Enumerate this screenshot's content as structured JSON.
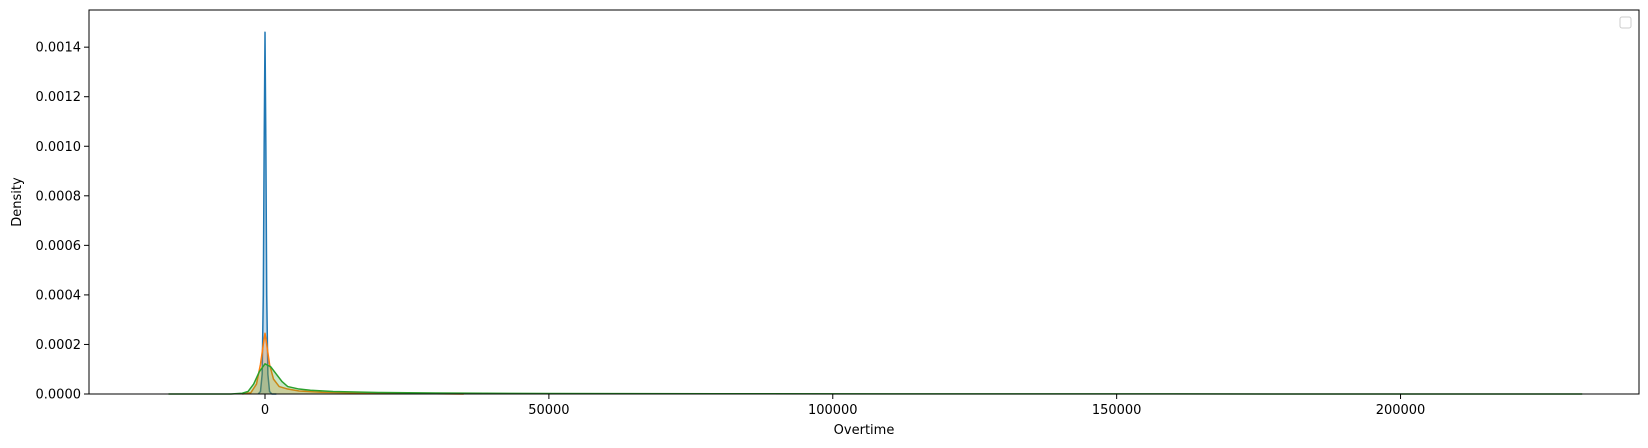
{
  "chart_data": {
    "type": "area",
    "title": "",
    "xlabel": "Overtime",
    "ylabel": "Density",
    "xlim": [
      -31000,
      242000
    ],
    "ylim": [
      0,
      0.00155
    ],
    "x_ticks": [
      0,
      50000,
      100000,
      150000,
      200000
    ],
    "x_tick_labels": [
      "0",
      "50000",
      "100000",
      "150000",
      "200000"
    ],
    "y_ticks": [
      0,
      0.0002,
      0.0004,
      0.0006,
      0.0008,
      0.001,
      0.0012,
      0.0014
    ],
    "y_tick_labels": [
      "0.0000",
      "0.0002",
      "0.0004",
      "0.0006",
      "0.0008",
      "0.0010",
      "0.0012",
      "0.0014"
    ],
    "grid": false,
    "legend": {
      "placement": "top-right",
      "entries": []
    },
    "series": [
      {
        "color": "#1f77b4",
        "x": [
          -1200,
          -800,
          -500,
          -300,
          -150,
          0,
          150,
          300,
          500,
          800,
          1200,
          2000
        ],
        "y": [
          0,
          1e-05,
          8e-05,
          0.0004,
          0.001,
          0.00146,
          0.001,
          0.0004,
          8e-05,
          1e-05,
          0,
          0
        ]
      },
      {
        "color": "#ff7f0e",
        "x": [
          -4000,
          -2500,
          -1500,
          -800,
          -300,
          0,
          300,
          800,
          1500,
          2500,
          4000,
          6000,
          10000,
          20000,
          35000
        ],
        "y": [
          0,
          5e-06,
          4e-05,
          0.00012,
          0.0002,
          0.000245,
          0.0002,
          0.00012,
          6e-05,
          3e-05,
          2e-05,
          1.2e-05,
          7e-06,
          3e-06,
          0
        ]
      },
      {
        "color": "#2ca02c",
        "x": [
          -17000,
          -6000,
          -4000,
          -3000,
          -2000,
          -1000,
          0,
          1000,
          2000,
          3000,
          4000,
          6000,
          8000,
          12000,
          20000,
          30000,
          50000,
          80000,
          120000,
          160000,
          200000,
          232000
        ],
        "y": [
          0,
          0,
          3e-06,
          1e-05,
          4e-05,
          9e-05,
          0.000122,
          0.00011,
          8e-05,
          5e-05,
          3e-05,
          2e-05,
          1.5e-05,
          1e-05,
          6e-06,
          4e-06,
          2e-06,
          1e-06,
          5e-07,
          3e-07,
          2e-07,
          0
        ]
      }
    ]
  }
}
